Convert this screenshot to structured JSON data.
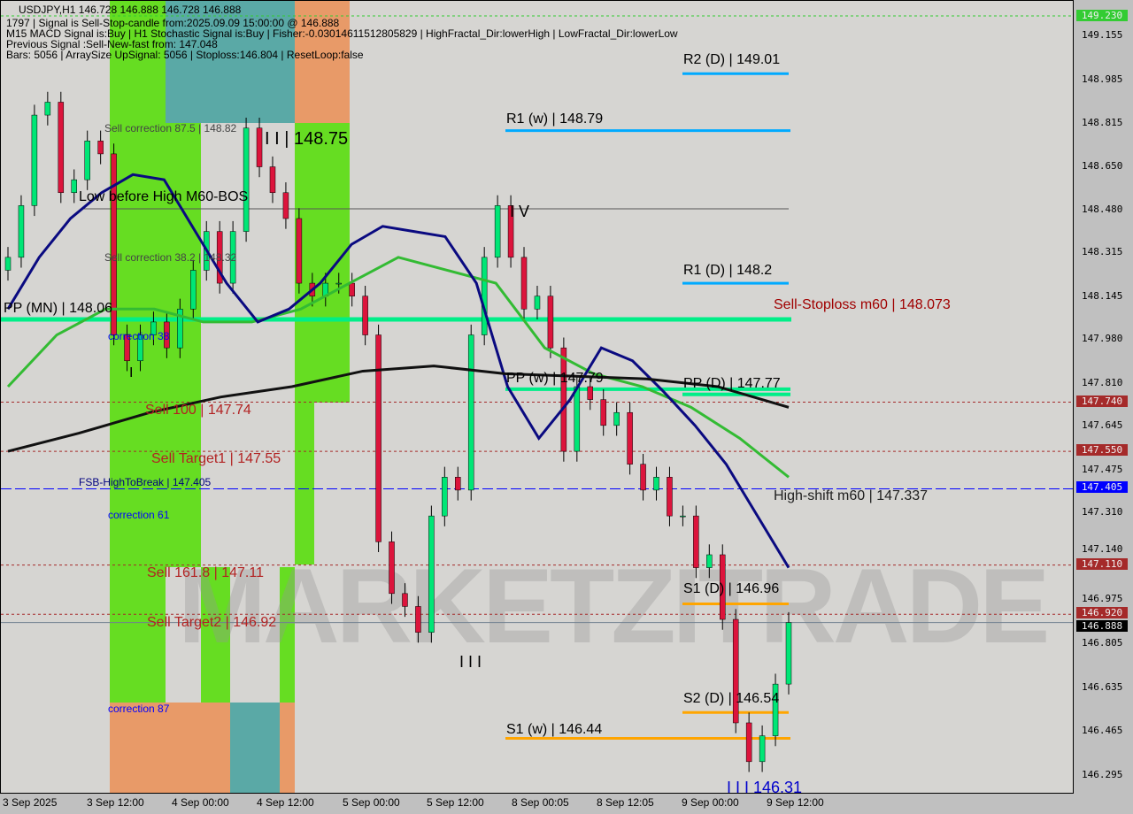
{
  "header": {
    "symbol_line": "USDJPY,H1  146.728 146.888 146.728 146.888",
    "line1": "1797 | Signal is Sell-Stop-candle from:2025.09.09 15:00:00 @ 146.888",
    "line2": "M15 MACD Signal is:Buy | H1 Stochastic Signal is:Buy | Fisher:-0.03014611512805829 | HighFractal_Dir:lowerHigh | LowFractal_Dir:lowerLow",
    "line3": "Previous Signal :Sell-New-fast from: 147.048",
    "line4": "Bars: 5056 | ArraySize UpSignal: 5056 | Stoploss:146.804 | ResetLoop:false"
  },
  "watermark": "MARKETZITRADE",
  "chart_data": {
    "type": "candlestick",
    "symbol": "USDJPY",
    "timeframe": "H1",
    "ylim": [
      146.295,
      149.23
    ],
    "y_ticks": [
      "149.155",
      "148.985",
      "148.815",
      "148.650",
      "148.480",
      "148.315",
      "148.145",
      "147.980",
      "147.810",
      "147.645",
      "147.475",
      "147.310",
      "147.140",
      "146.975",
      "146.805",
      "146.635",
      "146.465",
      "146.295"
    ],
    "x_ticks": [
      "3 Sep 2025",
      "3 Sep 12:00",
      "4 Sep 00:00",
      "4 Sep 12:00",
      "5 Sep 00:00",
      "5 Sep 12:00",
      "8 Sep 00:05",
      "8 Sep 12:05",
      "9 Sep 00:00",
      "9 Sep 12:00"
    ],
    "close": [
      148.3,
      148.5,
      148.85,
      148.9,
      148.55,
      148.6,
      148.75,
      148.7,
      148.0,
      147.9,
      148.0,
      148.05,
      147.95,
      148.1,
      148.25,
      148.4,
      148.2,
      148.4,
      148.8,
      148.65,
      148.55,
      148.45,
      148.2,
      148.15,
      148.2,
      148.2,
      148.15,
      148.0,
      147.2,
      147.0,
      146.95,
      146.85,
      147.3,
      147.45,
      147.4,
      148.0,
      148.3,
      148.5,
      148.3,
      148.1,
      148.15,
      147.95,
      147.55,
      147.8,
      147.75,
      147.65,
      147.7,
      147.5,
      147.4,
      147.45,
      147.3,
      147.3,
      147.1,
      147.15,
      146.9,
      146.5,
      146.35,
      146.45,
      146.65,
      146.888
    ],
    "ma_blue": [
      148.1,
      148.3,
      148.45,
      148.55,
      148.62,
      148.6,
      148.4,
      148.2,
      148.05,
      148.1,
      148.2,
      148.35,
      148.42,
      148.4,
      148.38,
      148.2,
      147.8,
      147.6,
      147.75,
      147.95,
      147.9,
      147.78,
      147.65,
      147.5,
      147.3,
      147.1
    ],
    "ma_green": [
      147.8,
      148.0,
      148.1,
      148.1,
      148.05,
      148.05,
      148.1,
      148.2,
      148.3,
      148.25,
      148.2,
      147.95,
      147.85,
      147.8,
      147.72,
      147.6,
      147.45
    ],
    "ma_black": [
      147.55,
      147.62,
      147.7,
      147.76,
      147.8,
      147.86,
      147.88,
      147.85,
      147.84,
      147.83,
      147.8,
      147.72
    ],
    "price_tags": [
      {
        "price": 149.23,
        "text": "149.230",
        "color": "#33cc33"
      },
      {
        "price": 147.74,
        "text": "147.740",
        "color": "#a52a2a"
      },
      {
        "price": 147.55,
        "text": "147.550",
        "color": "#a52a2a"
      },
      {
        "price": 147.405,
        "text": "147.405",
        "color": "#0000ff"
      },
      {
        "price": 147.11,
        "text": "147.110",
        "color": "#a52a2a"
      },
      {
        "price": 146.92,
        "text": "146.920",
        "color": "#a52a2a"
      },
      {
        "price": 146.888,
        "text": "146.888",
        "color": "#000000"
      }
    ],
    "levels": [
      {
        "text": "R2 (D) | 149.01",
        "price": 149.01,
        "color": "#00aaff"
      },
      {
        "text": "R1 (w) | 148.79",
        "price": 148.79,
        "color": "#00aaff"
      },
      {
        "text": "R1 (D) | 148.2",
        "price": 148.2,
        "color": "#00aaff"
      },
      {
        "text": "PP (MN) | 148.06",
        "price": 148.06,
        "color": "#00ee88"
      },
      {
        "text": "PP (w) | 147.79",
        "price": 147.79,
        "color": "#00ee88"
      },
      {
        "text": "PP (D) | 147.77",
        "price": 147.77,
        "color": "#00ee88"
      },
      {
        "text": "S1 (D) | 146.96",
        "price": 146.96,
        "color": "#ffa500"
      },
      {
        "text": "S2 (D) | 146.54",
        "price": 146.54,
        "color": "#ffa500"
      },
      {
        "text": "S1 (w) | 146.44",
        "price": 146.44,
        "color": "#ffa500"
      }
    ],
    "annotations": [
      {
        "text": "Sell-Stoploss m60 | 148.073",
        "color": "#a00000"
      },
      {
        "text": "High-shift m60 | 147.337",
        "color": "#202020"
      },
      {
        "text": "Sell 100 | 147.74",
        "color": "#b22222"
      },
      {
        "text": "Sell Target1 | 147.55",
        "color": "#b22222"
      },
      {
        "text": "Sell 161.8 | 147.11",
        "color": "#b22222"
      },
      {
        "text": "Sell Target2 | 146.92",
        "color": "#b22222"
      },
      {
        "text": "FSB-HighToBreak | 147.405",
        "color": "#000080"
      },
      {
        "text": "Sell correction 87.5 | 148.82",
        "color": "#444444"
      },
      {
        "text": "Sell correction 38.2 | 148.32",
        "color": "#444444"
      },
      {
        "text": "Low before High   M60-BOS",
        "color": "#000000"
      },
      {
        "text": "correction 38",
        "color": "#0000ff"
      },
      {
        "text": "correction 61",
        "color": "#0000ff"
      },
      {
        "text": "correction 87",
        "color": "#0000ff"
      },
      {
        "text": "I I | 148.75",
        "color": "#000000"
      },
      {
        "text": "I V",
        "color": "#000000"
      },
      {
        "text": "I I I",
        "color": "#000000"
      },
      {
        "text": "I I I 146.31",
        "color": "#0000cc"
      },
      {
        "text": "I",
        "color": "#000000"
      }
    ]
  }
}
